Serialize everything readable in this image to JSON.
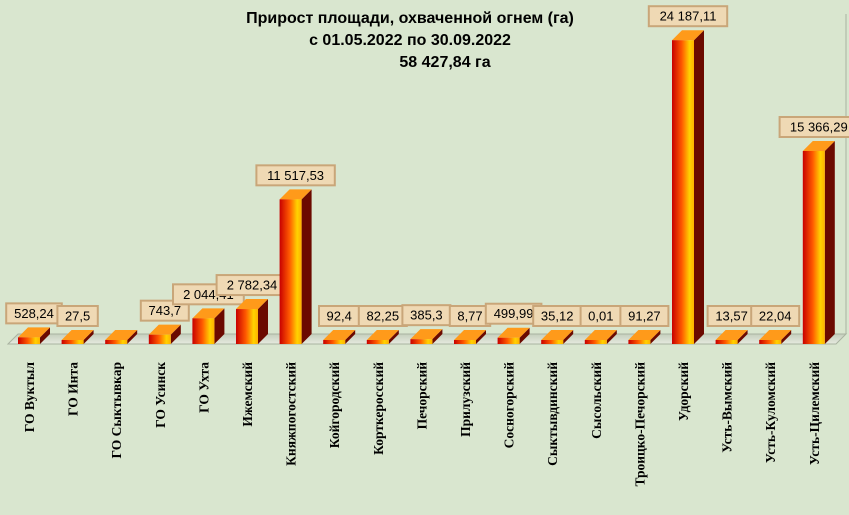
{
  "chart_data": {
    "type": "bar",
    "title": "Прирост площади, охваченной огнем (га)",
    "subtitle": "с 01.05.2022  по  30.09.2022",
    "total": "58 427,84 га",
    "categories": [
      "ГО Вуктыл",
      "ГО Инта",
      "ГО Сыктывкар",
      "ГО Усинск",
      "ГО Ухта",
      "Ижемский",
      "Княжпогостский",
      "Койгородский",
      "Корткеросский",
      "Печорский",
      "Прилузский",
      "Сосногорский",
      "Сыктывдинский",
      "Сысольский",
      "Троицко-Печорский",
      "Удорский",
      "Усть-Вымский",
      "Усть-Куломский",
      "Усть-Цилемский"
    ],
    "values": [
      528.24,
      27.5,
      0,
      743.7,
      2044.41,
      2782.34,
      11517.53,
      92.4,
      82.25,
      385.3,
      8.77,
      499.99,
      35.12,
      0.01,
      91.27,
      24187.11,
      13.57,
      22.04,
      15366.29
    ],
    "value_labels": [
      "528,24",
      "27,5",
      "",
      "743,7",
      "2 044,41",
      "2 782,34",
      "11 517,53",
      "92,4",
      "82,25",
      "385,3",
      "8,77",
      "499,99",
      "35,12",
      "0,01",
      "91,27",
      "24 187,11",
      "13,57",
      "22,04",
      "15 366,29"
    ],
    "ylim": [
      0,
      25000
    ],
    "grid": false,
    "legend": "none",
    "colors": {
      "background": "#d9e6cf",
      "bar_dark": "#c80000",
      "bar_light": "#ffd200",
      "bar_side": "#6b0a00",
      "label_fill": "#efd9b4",
      "label_border": "#c9a679"
    }
  }
}
